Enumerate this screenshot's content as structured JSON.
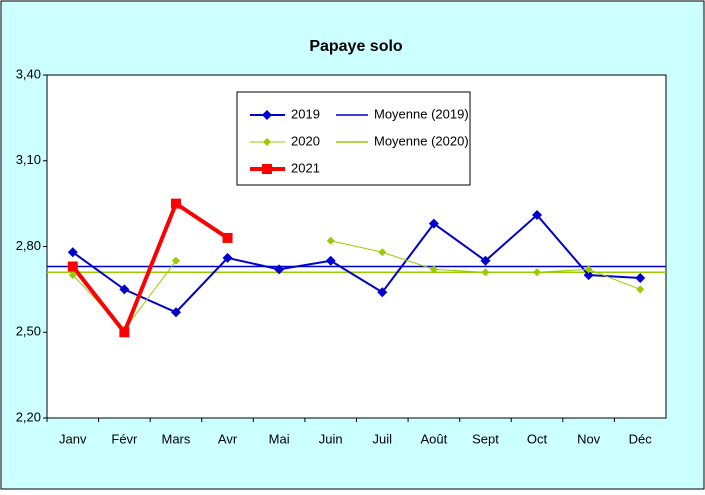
{
  "chart_data": {
    "type": "line",
    "title": "Papaye solo",
    "categories": [
      "Janv",
      "Févr",
      "Mars",
      "Avr",
      "Mai",
      "Juin",
      "Juil",
      "Août",
      "Sept",
      "Oct",
      "Nov",
      "Déc"
    ],
    "ylim": [
      2.2,
      3.4
    ],
    "yticks": [
      {
        "value": 2.2,
        "label": "2,20"
      },
      {
        "value": 2.5,
        "label": "2,50"
      },
      {
        "value": 2.8,
        "label": "2,80"
      },
      {
        "value": 3.1,
        "label": "3,10"
      },
      {
        "value": 3.4,
        "label": "3,40"
      }
    ],
    "series": [
      {
        "name": "2019",
        "color": "#0000cc",
        "values": [
          2.78,
          2.65,
          2.57,
          2.76,
          2.72,
          2.75,
          2.64,
          2.88,
          2.75,
          2.91,
          2.7,
          2.69
        ]
      },
      {
        "name": "2020",
        "color": "#99cc00",
        "values": [
          2.7,
          2.51,
          2.75,
          null,
          null,
          2.82,
          2.78,
          2.72,
          2.71,
          2.71,
          2.72,
          2.65
        ]
      },
      {
        "name": "2021",
        "color": "#ff0000",
        "values": [
          2.73,
          2.5,
          2.95,
          2.83,
          null,
          null,
          null,
          null,
          null,
          null,
          null,
          null
        ]
      }
    ],
    "means": [
      {
        "name": "Moyenne (2019)",
        "color": "#0000cc",
        "value": 2.73
      },
      {
        "name": "Moyenne (2020)",
        "color": "#99cc00",
        "value": 2.71
      }
    ]
  }
}
